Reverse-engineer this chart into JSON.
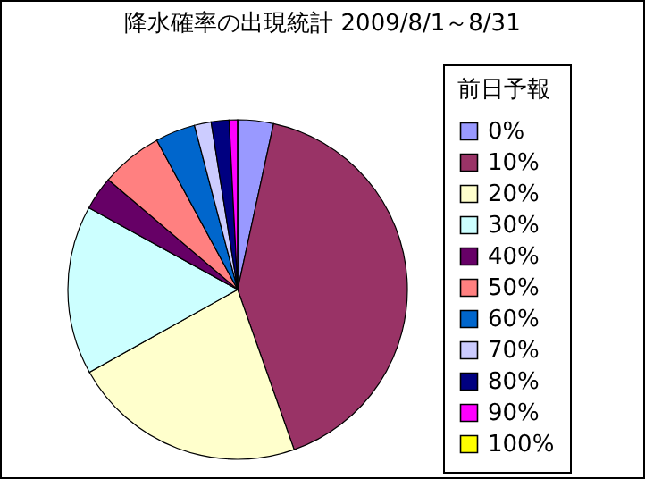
{
  "chart_data": {
    "type": "pie",
    "title": "降水確率の出現統計  2009/8/1～8/31",
    "legend_title": "前日予報",
    "legend": "right",
    "categories": [
      "0%",
      "10%",
      "20%",
      "30%",
      "40%",
      "50%",
      "60%",
      "70%",
      "80%",
      "90%",
      "100%"
    ],
    "values": [
      3.4,
      41.2,
      22.3,
      16.1,
      3.2,
      5.9,
      3.8,
      1.6,
      1.7,
      0.8,
      0
    ],
    "colors": [
      "#9999ff",
      "#993366",
      "#ffffcc",
      "#ccffff",
      "#660066",
      "#ff8080",
      "#0066cc",
      "#ccccff",
      "#000080",
      "#ff00ff",
      "#ffff00"
    ]
  }
}
